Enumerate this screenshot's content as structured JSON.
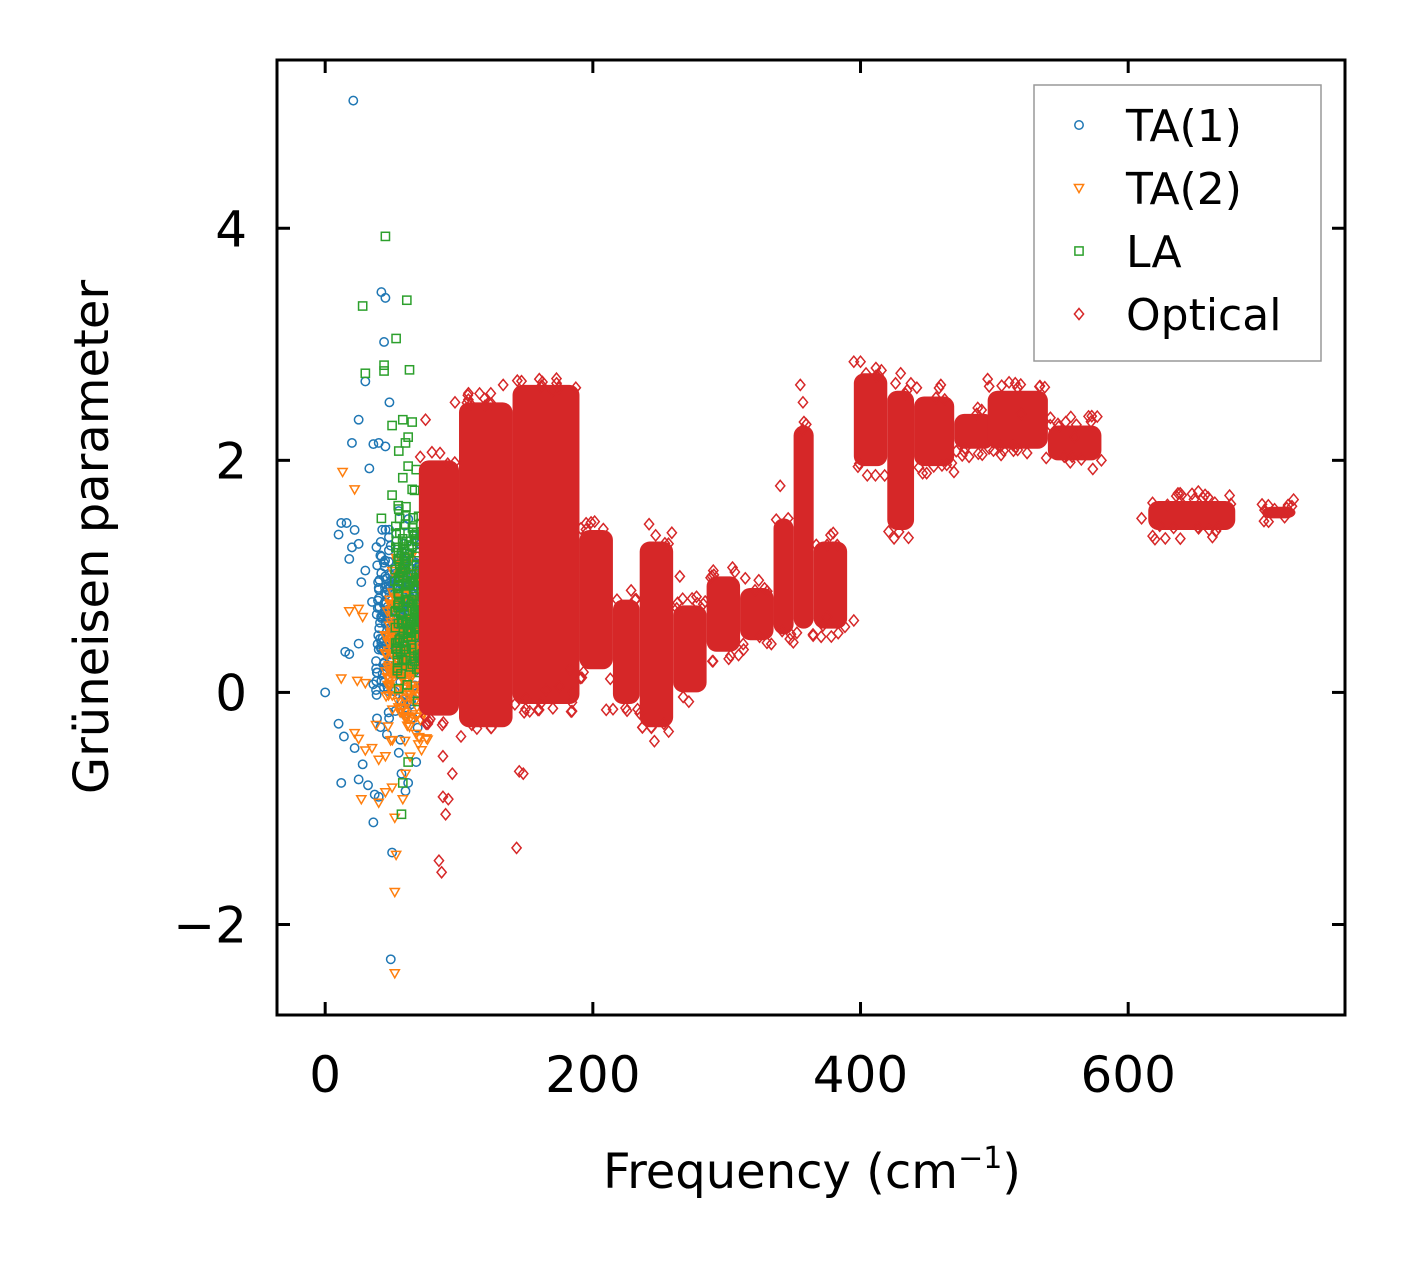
{
  "chart_data": {
    "type": "scatter",
    "title": "",
    "xlabel": "Frequency (cm",
    "xlabel_sup": "−1",
    "xlabel_tail": ")",
    "ylabel": "Grüneisen parameter",
    "xlim": [
      -36,
      762
    ],
    "ylim": [
      -2.78,
      5.45
    ],
    "xticks": [
      0,
      200,
      400,
      600
    ],
    "xtick_labels": [
      "0",
      "200",
      "400",
      "600"
    ],
    "yticks": [
      -2,
      0,
      2,
      4
    ],
    "ytick_labels": [
      "−2",
      "0",
      "2",
      "4"
    ],
    "grid": false,
    "legend_position": "top-right",
    "series": [
      {
        "name": "TA(1)",
        "marker": "circle",
        "color": "#1f77b4",
        "points": [
          [
            21,
            5.1
          ],
          [
            42,
            3.45
          ],
          [
            45,
            3.4
          ],
          [
            44,
            3.02
          ],
          [
            30,
            2.68
          ],
          [
            48,
            2.5
          ],
          [
            25,
            2.35
          ],
          [
            40,
            2.15
          ],
          [
            20,
            2.15
          ],
          [
            36,
            2.14
          ],
          [
            45,
            2.12
          ],
          [
            33,
            1.93
          ],
          [
            12,
            1.46
          ],
          [
            16,
            1.46
          ],
          [
            10,
            1.36
          ],
          [
            22,
            1.4
          ],
          [
            25,
            1.28
          ],
          [
            20,
            1.25
          ],
          [
            18,
            1.15
          ],
          [
            30,
            1.05
          ],
          [
            27,
            0.95
          ],
          [
            40,
            0.9
          ],
          [
            35,
            0.78
          ],
          [
            15,
            0.35
          ],
          [
            25,
            0.42
          ],
          [
            18,
            0.33
          ],
          [
            38,
            0.27
          ],
          [
            42,
            0.1
          ],
          [
            36,
            0.07
          ],
          [
            38,
            0.02
          ],
          [
            0,
            0
          ],
          [
            10,
            -0.27
          ],
          [
            14,
            -0.38
          ],
          [
            22,
            -0.48
          ],
          [
            28,
            -0.62
          ],
          [
            25,
            -0.75
          ],
          [
            12,
            -0.78
          ],
          [
            32,
            -0.8
          ],
          [
            37,
            -0.88
          ],
          [
            40,
            -0.9
          ],
          [
            36,
            -1.12
          ],
          [
            50,
            -1.38
          ],
          [
            49,
            -2.3
          ],
          [
            60,
            -0.85
          ],
          [
            57,
            -0.7
          ],
          [
            62,
            -0.78
          ],
          [
            55,
            -0.52
          ],
          [
            68,
            -0.6
          ]
        ],
        "dense_range": {
          "x": [
            38,
            72
          ],
          "y": [
            -0.6,
            1.8
          ]
        }
      },
      {
        "name": "TA(2)",
        "marker": "triangle-down",
        "color": "#ff7f0e",
        "points": [
          [
            13,
            1.9
          ],
          [
            22,
            1.75
          ],
          [
            18,
            0.7
          ],
          [
            25,
            0.72
          ],
          [
            28,
            0.65
          ],
          [
            12,
            0.12
          ],
          [
            24,
            0.1
          ],
          [
            30,
            0.08
          ],
          [
            38,
            -0.28
          ],
          [
            35,
            -0.48
          ],
          [
            40,
            -0.58
          ],
          [
            45,
            -0.55
          ],
          [
            22,
            -0.35
          ],
          [
            25,
            -0.4
          ],
          [
            30,
            -0.5
          ],
          [
            27,
            -0.92
          ],
          [
            40,
            -0.95
          ],
          [
            45,
            -0.86
          ],
          [
            50,
            -0.82
          ],
          [
            53,
            -1.4
          ],
          [
            52,
            -1.72
          ],
          [
            52,
            -2.42
          ],
          [
            52,
            -1.08
          ],
          [
            58,
            -0.92
          ],
          [
            60,
            -0.7
          ]
        ],
        "dense_range": {
          "x": [
            44,
            80
          ],
          "y": [
            -0.7,
            1.4
          ]
        }
      },
      {
        "name": "LA",
        "marker": "square",
        "color": "#2ca02c",
        "points": [
          [
            45,
            3.93
          ],
          [
            28,
            3.33
          ],
          [
            61,
            3.38
          ],
          [
            53,
            3.05
          ],
          [
            30,
            2.75
          ],
          [
            44,
            2.82
          ],
          [
            44,
            2.77
          ],
          [
            63,
            2.78
          ],
          [
            65,
            2.33
          ],
          [
            58,
            2.35
          ],
          [
            62,
            2.2
          ],
          [
            60,
            2.15
          ],
          [
            50,
            2.3
          ],
          [
            55,
            2.08
          ],
          [
            62,
            1.95
          ],
          [
            68,
            1.92
          ],
          [
            58,
            1.85
          ],
          [
            65,
            1.75
          ],
          [
            50,
            1.7
          ],
          [
            55,
            1.58
          ],
          [
            42,
            1.5
          ],
          [
            60,
            1.45
          ],
          [
            57,
            -1.05
          ],
          [
            58,
            -0.78
          ],
          [
            62,
            -0.6
          ]
        ],
        "dense_range": {
          "x": [
            52,
            84
          ],
          "y": [
            -0.4,
            1.9
          ]
        }
      },
      {
        "name": "Optical",
        "marker": "diamond",
        "color": "#d62728",
        "points": [
          [
            75,
            2.35
          ],
          [
            97,
            2.5
          ],
          [
            133,
            2.65
          ],
          [
            160,
            2.7
          ],
          [
            170,
            2.6
          ],
          [
            242,
            1.45
          ],
          [
            265,
            1.0
          ],
          [
            290,
            1.05
          ],
          [
            340,
            1.78
          ],
          [
            355,
            2.65
          ],
          [
            357,
            2.5
          ],
          [
            395,
            2.85
          ],
          [
            400,
            2.85
          ],
          [
            430,
            2.75
          ],
          [
            460,
            2.65
          ],
          [
            495,
            2.7
          ],
          [
            520,
            2.4
          ],
          [
            560,
            2.2
          ],
          [
            580,
            2.0
          ],
          [
            610,
            1.5
          ],
          [
            620,
            1.32
          ],
          [
            640,
            1.7
          ],
          [
            700,
            1.62
          ],
          [
            88,
            -0.55
          ],
          [
            95,
            -0.7
          ],
          [
            88,
            -0.9
          ],
          [
            92,
            -0.92
          ],
          [
            90,
            -1.05
          ],
          [
            85,
            -1.45
          ],
          [
            87,
            -1.55
          ],
          [
            145,
            -0.68
          ],
          [
            148,
            -0.7
          ],
          [
            143,
            -1.34
          ],
          [
            150,
            -0.05
          ],
          [
            165,
            0.02
          ],
          [
            175,
            0.05
          ],
          [
            183,
            0.2
          ],
          [
            185,
            0.0
          ],
          [
            246,
            -0.42
          ],
          [
            235,
            -0.18
          ],
          [
            210,
            -0.15
          ],
          [
            375,
            0.65
          ],
          [
            395,
            0.62
          ]
        ],
        "dense_bands": [
          [
            70,
            100,
            -0.2,
            2.0
          ],
          [
            100,
            140,
            -0.3,
            2.5
          ],
          [
            140,
            190,
            -0.1,
            2.65
          ],
          [
            190,
            215,
            0.2,
            1.4
          ],
          [
            215,
            235,
            -0.1,
            0.8
          ],
          [
            235,
            260,
            -0.3,
            1.3
          ],
          [
            260,
            285,
            0.0,
            0.75
          ],
          [
            285,
            310,
            0.35,
            1.0
          ],
          [
            310,
            335,
            0.45,
            0.9
          ],
          [
            335,
            350,
            0.5,
            1.5
          ],
          [
            350,
            365,
            0.55,
            2.3
          ],
          [
            365,
            390,
            0.55,
            1.3
          ],
          [
            395,
            420,
            1.95,
            2.75
          ],
          [
            420,
            440,
            1.4,
            2.6
          ],
          [
            440,
            470,
            1.95,
            2.55
          ],
          [
            470,
            500,
            2.1,
            2.4
          ],
          [
            495,
            540,
            2.1,
            2.6
          ],
          [
            540,
            580,
            2.0,
            2.3
          ],
          [
            615,
            680,
            1.4,
            1.65
          ],
          [
            700,
            725,
            1.5,
            1.6
          ]
        ]
      }
    ]
  }
}
